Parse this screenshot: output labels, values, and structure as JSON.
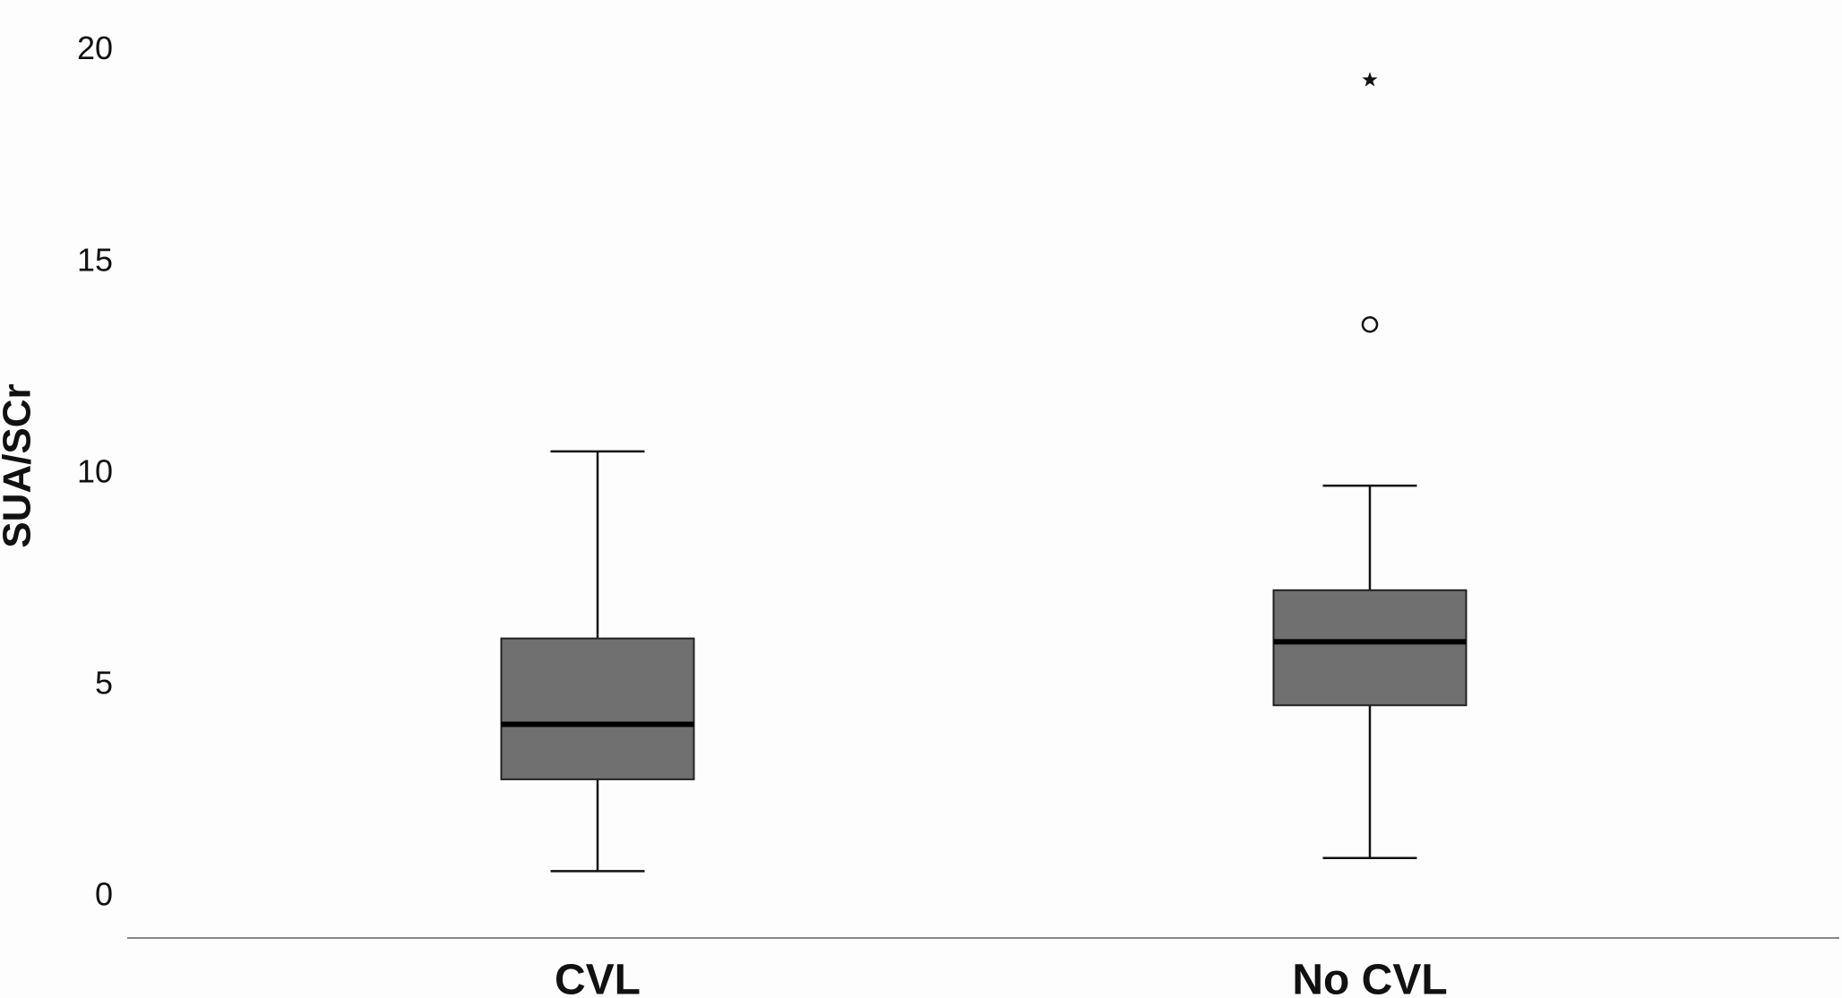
{
  "chart_data": {
    "type": "boxplot",
    "y_label": "SUA/SCr",
    "categories": [
      "CVL",
      "No CVL"
    ],
    "boxes": [
      {
        "min": 0.61,
        "q1": 2.78,
        "median": 4.08,
        "q3": 6.11,
        "max": 10.53,
        "outliers": [],
        "extremes": []
      },
      {
        "min": 0.92,
        "q1": 4.53,
        "median": 6.03,
        "q3": 7.25,
        "max": 9.72,
        "outliers": [
          13.53
        ],
        "extremes": [
          19.31
        ]
      }
    ],
    "color": "#707070",
    "ylim": [
      -0.97,
      21.2
    ],
    "yticks": [
      0,
      5,
      10,
      15,
      20
    ],
    "grid": false
  }
}
